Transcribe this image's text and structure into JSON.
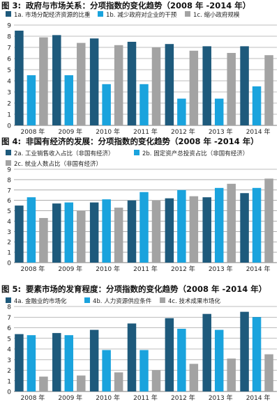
{
  "colors": {
    "dark": "#1e5a7c",
    "blue": "#1aa3dd",
    "gray": "#a3a3a3",
    "grid": "#7b7b7b",
    "title": "#111111"
  },
  "chart_data": [
    {
      "type": "bar",
      "title_prefix": "图 3:",
      "title": "政府与市场关系：分项指数的变化趋势（2008 年 -2014 年）",
      "categories": [
        "2008 年",
        "2009 年",
        "2010 年",
        "2011 年",
        "2012 年",
        "2013 年",
        "2014 年"
      ],
      "ylim": [
        0,
        9
      ],
      "yticks": [
        0,
        1,
        2,
        3,
        4,
        5,
        6,
        7,
        8,
        9
      ],
      "grid": true,
      "legend_position": "top",
      "series": [
        {
          "name": "1a. 市场分配经济资源的比重",
          "color": "#1e5a7c",
          "values": [
            8.5,
            8.1,
            7.8,
            7.5,
            7.3,
            7.1,
            7.1
          ]
        },
        {
          "name": "1b. 减少政府对企业的干预",
          "color": "#1aa3dd",
          "values": [
            4.5,
            4.5,
            3.7,
            3.7,
            2.4,
            2.4,
            3.5
          ]
        },
        {
          "name": "1c. 缩小政府规模",
          "color": "#a3a3a3",
          "values": [
            7.9,
            7.4,
            7.2,
            7.0,
            6.7,
            6.5,
            6.3
          ]
        }
      ]
    },
    {
      "type": "bar",
      "title_prefix": "图 4:",
      "title": "非国有经济的发展：分项指数的变化趋势（2008 年 -2014 年）",
      "categories": [
        "2008 年",
        "2009 年",
        "2010 年",
        "2011 年",
        "2012 年",
        "2013 年",
        "2014 年"
      ],
      "ylim": [
        0,
        9
      ],
      "yticks": [
        0,
        1,
        2,
        3,
        4,
        5,
        6,
        7,
        8,
        9
      ],
      "grid": true,
      "legend_position": "top",
      "series": [
        {
          "name": "2a. 工业销售收入占比（非国有经济）",
          "color": "#1e5a7c",
          "values": [
            5.5,
            5.7,
            5.8,
            6.0,
            6.2,
            6.3,
            6.7
          ]
        },
        {
          "name": "2b. 固定资产总投资占比（非国有经济）",
          "color": "#1aa3dd",
          "values": [
            6.3,
            5.8,
            6.1,
            6.8,
            7.0,
            7.2,
            7.2
          ]
        },
        {
          "name": "2c. 就业人数占比（非国有经济）",
          "color": "#a3a3a3",
          "values": [
            4.3,
            5.0,
            5.3,
            6.0,
            6.4,
            7.6,
            8.1
          ]
        }
      ]
    },
    {
      "type": "bar",
      "title_prefix": "图 5:",
      "title": "要素市场的发育程度：分项指数的变化趋势（2008 年 -2014 年）",
      "categories": [
        "2008 年",
        "2009 年",
        "2010 年",
        "2011 年",
        "2012 年",
        "2013 年",
        "2014 年"
      ],
      "ylim": [
        0,
        8
      ],
      "yticks": [
        0,
        1,
        2,
        3,
        4,
        5,
        6,
        7,
        8
      ],
      "grid": true,
      "legend_position": "top",
      "series": [
        {
          "name": "4a. 金融业的市场化",
          "color": "#1e5a7c",
          "values": [
            5.4,
            5.5,
            5.8,
            6.4,
            6.9,
            7.3,
            7.5
          ]
        },
        {
          "name": "4b. 人力资源供应条件",
          "color": "#1aa3dd",
          "values": [
            5.3,
            5.3,
            3.9,
            3.9,
            5.9,
            5.8,
            7.0
          ]
        },
        {
          "name": "4c. 技术成果市场化",
          "color": "#a3a3a3",
          "values": [
            1.4,
            1.5,
            1.8,
            2.0,
            2.6,
            3.1,
            3.5
          ]
        }
      ]
    }
  ]
}
